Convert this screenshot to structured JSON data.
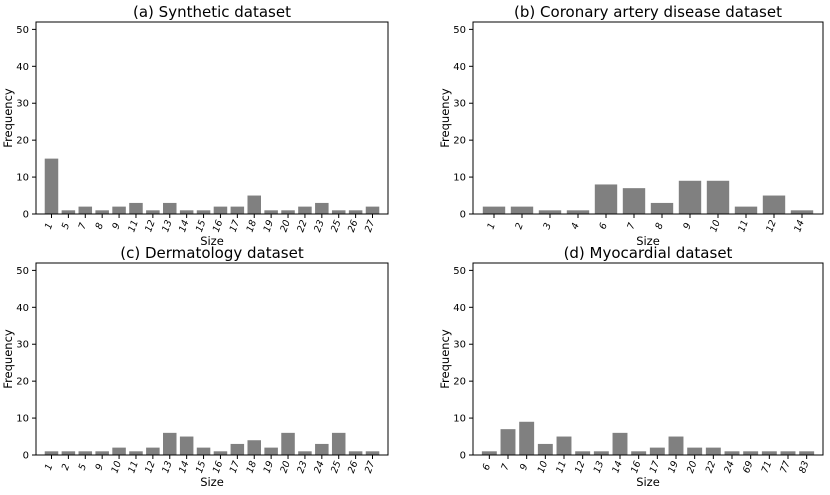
{
  "chart_data": [
    {
      "type": "bar",
      "title": "(a) Synthetic dataset",
      "xlabel": "Size",
      "ylabel": "Frequency",
      "ylim": [
        0,
        52
      ],
      "yticks": [
        0,
        10,
        20,
        30,
        40,
        50
      ],
      "categories": [
        "1",
        "5",
        "7",
        "8",
        "9",
        "11",
        "12",
        "13",
        "14",
        "15",
        "16",
        "17",
        "18",
        "19",
        "20",
        "22",
        "23",
        "25",
        "26",
        "27"
      ],
      "values": [
        15,
        1,
        2,
        1,
        2,
        3,
        1,
        3,
        1,
        1,
        2,
        2,
        5,
        1,
        1,
        2,
        3,
        1,
        1,
        2
      ],
      "color": "#808080"
    },
    {
      "type": "bar",
      "title": "(b) Coronary artery disease dataset",
      "xlabel": "Size",
      "ylabel": "Frequency",
      "ylim": [
        0,
        52
      ],
      "yticks": [
        0,
        10,
        20,
        30,
        40,
        50
      ],
      "categories": [
        "1",
        "2",
        "3",
        "4",
        "6",
        "7",
        "8",
        "9",
        "10",
        "11",
        "12",
        "14"
      ],
      "values": [
        2,
        2,
        1,
        1,
        8,
        7,
        3,
        9,
        9,
        2,
        5,
        1
      ],
      "color": "#808080"
    },
    {
      "type": "bar",
      "title": "(c) Dermatology dataset",
      "xlabel": "Size",
      "ylabel": "Frequency",
      "ylim": [
        0,
        52
      ],
      "yticks": [
        0,
        10,
        20,
        30,
        40,
        50
      ],
      "categories": [
        "1",
        "2",
        "5",
        "9",
        "10",
        "11",
        "12",
        "13",
        "14",
        "15",
        "16",
        "17",
        "18",
        "19",
        "20",
        "23",
        "24",
        "25",
        "26",
        "27"
      ],
      "values": [
        1,
        1,
        1,
        1,
        2,
        1,
        2,
        6,
        5,
        2,
        1,
        3,
        4,
        2,
        6,
        1,
        3,
        6,
        1,
        1
      ],
      "color": "#808080"
    },
    {
      "type": "bar",
      "title": "(d) Myocardial dataset",
      "xlabel": "Size",
      "ylabel": "Frequency",
      "ylim": [
        0,
        52
      ],
      "yticks": [
        0,
        10,
        20,
        30,
        40,
        50
      ],
      "categories": [
        "6",
        "7",
        "9",
        "10",
        "11",
        "12",
        "13",
        "14",
        "16",
        "17",
        "19",
        "20",
        "22",
        "24",
        "69",
        "71",
        "77",
        "83"
      ],
      "values": [
        1,
        7,
        9,
        3,
        5,
        1,
        1,
        6,
        1,
        2,
        5,
        2,
        2,
        1,
        1,
        1,
        1,
        1
      ],
      "color": "#808080"
    }
  ]
}
